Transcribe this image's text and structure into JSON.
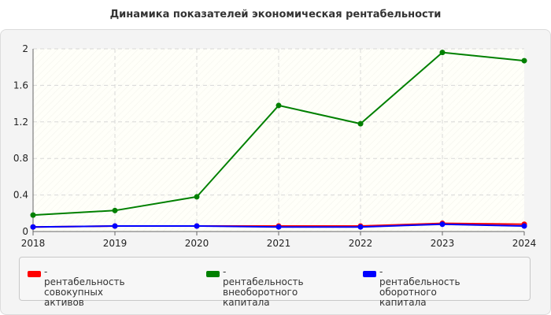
{
  "chart_data": {
    "type": "line",
    "title": "Динамика показателей экономическая рентабельности",
    "x": [
      "2018",
      "2019",
      "2020",
      "2021",
      "2022",
      "2023",
      "2024"
    ],
    "ylim": [
      0,
      2
    ],
    "yticks": [
      "0",
      "0.4",
      "0.8",
      "1.2",
      "1.6",
      "2"
    ],
    "grid": true,
    "legend_position": "bottom",
    "series": [
      {
        "name": "- рентабельность совокупных активов",
        "label_lines": [
          "- рентабельность совокупных",
          "активов"
        ],
        "color": "#ff0000",
        "values": [
          0.05,
          0.06,
          0.06,
          0.06,
          0.06,
          0.09,
          0.08
        ]
      },
      {
        "name": "- рентабельность внеоборотного капитала",
        "label_lines": [
          "- рентабельность",
          "внеоборотного капитала"
        ],
        "color": "#008000",
        "values": [
          0.18,
          0.23,
          0.38,
          1.38,
          1.18,
          1.96,
          1.87
        ]
      },
      {
        "name": "- рентабельность оборотного капитала",
        "label_lines": [
          "- рентабельность оборотного",
          "капитала"
        ],
        "color": "#0000ff",
        "values": [
          0.05,
          0.06,
          0.06,
          0.05,
          0.05,
          0.08,
          0.06
        ]
      }
    ]
  }
}
